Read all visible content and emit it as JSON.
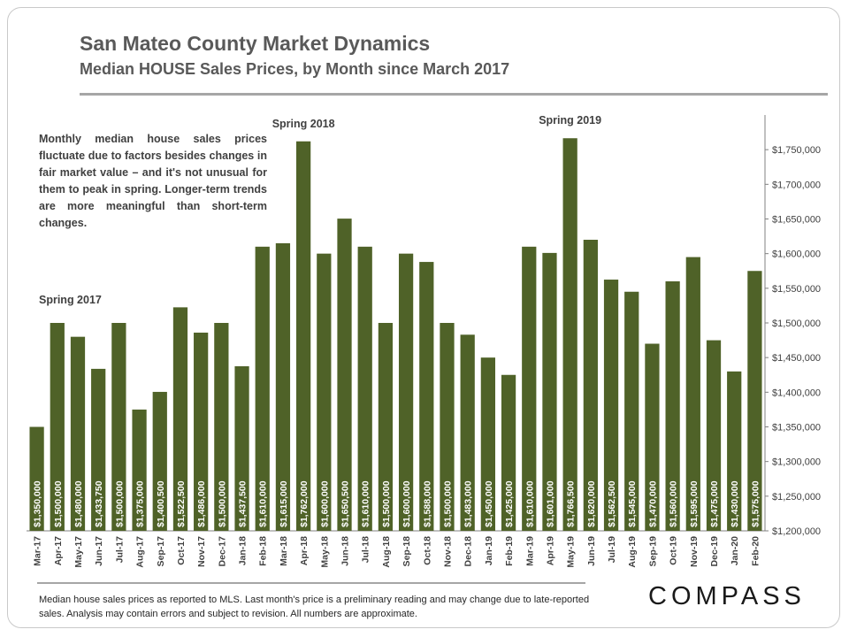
{
  "header": {
    "title": "San Mateo County Market Dynamics",
    "subtitle": "Median HOUSE Sales Prices, by Month since March 2017"
  },
  "note": "Monthly median house sales prices fluctuate due to factors besides changes in fair market value – and it's not unusual for them to peak in spring. Longer-term trends are more meaningful than short-term changes.",
  "footer": "Median house sales prices as reported to MLS. Last month's price is a preliminary reading and may change due to late-reported sales. Analysis may contain errors and subject to revision. All numbers are approximate.",
  "brand": "COMPASS",
  "colors": {
    "bar": "#4f6228",
    "label": "#ffffff"
  },
  "chart_data": {
    "type": "bar",
    "categories": [
      "Mar-17",
      "Apr-17",
      "May-17",
      "Jun-17",
      "Jul-17",
      "Aug-17",
      "Sep-17",
      "Oct-17",
      "Nov-17",
      "Dec-17",
      "Jan-18",
      "Feb-18",
      "Mar-18",
      "Apr-18",
      "May-18",
      "Jun-18",
      "Jul-18",
      "Aug-18",
      "Sep-18",
      "Oct-18",
      "Nov-18",
      "Dec-18",
      "Jan-19",
      "Feb-19",
      "Mar-19",
      "Apr-19",
      "May-19",
      "Jun-19",
      "Jul-19",
      "Aug-19",
      "Sep-19",
      "Oct-19",
      "Nov-19",
      "Dec-19",
      "Jan-20",
      "Feb-20"
    ],
    "values": [
      1350000,
      1500000,
      1480000,
      1433750,
      1500000,
      1375000,
      1400500,
      1522500,
      1486000,
      1500000,
      1437500,
      1610000,
      1615000,
      1762000,
      1600000,
      1650500,
      1610000,
      1500000,
      1600000,
      1588000,
      1500000,
      1483000,
      1450000,
      1425000,
      1610000,
      1601000,
      1766500,
      1620000,
      1562500,
      1545000,
      1470000,
      1560000,
      1595000,
      1475000,
      1430000,
      1575000
    ],
    "value_labels": [
      "$1,350,000",
      "$1,500,000",
      "$1,480,000",
      "$1,433,750",
      "$1,500,000",
      "$1,375,000",
      "$1,400,500",
      "$1,522,500",
      "$1,486,000",
      "$1,500,000",
      "$1,437,500",
      "$1,610,000",
      "$1,615,000",
      "$1,762,000",
      "$1,600,000",
      "$1,650,500",
      "$1,610,000",
      "$1,500,000",
      "$1,600,000",
      "$1,588,000",
      "$1,500,000",
      "$1,483,000",
      "$1,450,000",
      "$1,425,000",
      "$1,610,000",
      "$1,601,000",
      "$1,766,500",
      "$1,620,000",
      "$1,562,500",
      "$1,545,000",
      "$1,470,000",
      "$1,560,000",
      "$1,595,000",
      "$1,475,000",
      "$1,430,000",
      "$1,575,000"
    ],
    "ylim": [
      1200000,
      1800000
    ],
    "yticks": [
      1200000,
      1250000,
      1300000,
      1350000,
      1400000,
      1450000,
      1500000,
      1550000,
      1600000,
      1650000,
      1700000,
      1750000
    ],
    "ytick_labels": [
      "$1,200,000",
      "$1,250,000",
      "$1,300,000",
      "$1,350,000",
      "$1,400,000",
      "$1,450,000",
      "$1,500,000",
      "$1,550,000",
      "$1,600,000",
      "$1,650,000",
      "$1,700,000",
      "$1,750,000"
    ],
    "y_axis_side": "right",
    "grid": false,
    "annotations": [
      {
        "text": "Spring 2017",
        "category": "Mar-17"
      },
      {
        "text": "Spring 2018",
        "category": "Apr-18"
      },
      {
        "text": "Spring 2019",
        "category": "May-19"
      }
    ]
  }
}
